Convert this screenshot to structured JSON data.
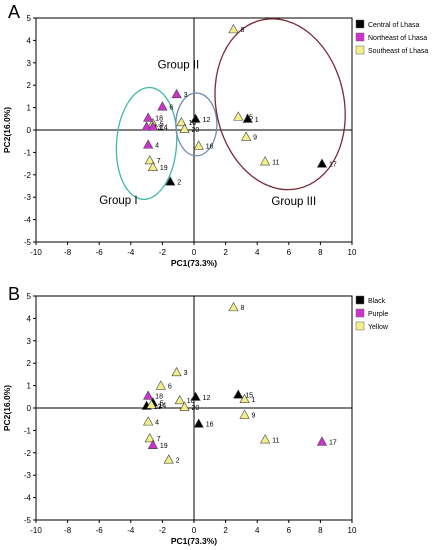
{
  "colors": {
    "black": "#000000",
    "magenta": "#cc33cc",
    "yellow": "#f3ef8a",
    "ellipse_teal": "#3fb9a8",
    "ellipse_blue": "#6f90b0",
    "ellipse_maroon": "#7a2a3a"
  },
  "chart_data": [
    {
      "panel_label": "A",
      "type": "scatter",
      "title": "",
      "xlabel": "PC1(73.3%)",
      "ylabel": "PC2(16.0%)",
      "xlim": [
        -10,
        10
      ],
      "ylim": [
        -5,
        5
      ],
      "xticks": [
        "-10",
        "-8",
        "-6",
        "-4",
        "-2",
        "0",
        "2",
        "4",
        "6",
        "8",
        "10"
      ],
      "yticks": [
        "-5",
        "-4",
        "-3",
        "-2",
        "-1",
        "0",
        "1",
        "2",
        "3",
        "4",
        "5"
      ],
      "grid": false,
      "legend_position": "top-right",
      "legend": [
        {
          "label": "Central of  Lhasa",
          "color_key": "black"
        },
        {
          "label": "Northeast of Lhasa",
          "color_key": "magenta"
        },
        {
          "label": "Southeast of Lhasa",
          "color_key": "yellow"
        }
      ],
      "points": [
        {
          "label": "1",
          "x": 3.4,
          "y": 0.5,
          "color_key": "black"
        },
        {
          "label": "2",
          "x": -1.5,
          "y": -2.3,
          "color_key": "black"
        },
        {
          "label": "3",
          "x": -1.1,
          "y": 1.6,
          "color_key": "magenta"
        },
        {
          "label": "4",
          "x": -2.9,
          "y": -0.65,
          "color_key": "magenta"
        },
        {
          "label": "5",
          "x": -2.6,
          "y": 0.3,
          "color_key": "yellow"
        },
        {
          "label": "6",
          "x": -2.0,
          "y": 1.05,
          "color_key": "magenta"
        },
        {
          "label": "7",
          "x": -2.8,
          "y": -1.35,
          "color_key": "yellow"
        },
        {
          "label": "8",
          "x": 2.5,
          "y": 4.5,
          "color_key": "yellow"
        },
        {
          "label": "9",
          "x": 3.3,
          "y": -0.3,
          "color_key": "yellow"
        },
        {
          "label": "10",
          "x": -0.8,
          "y": 0.35,
          "color_key": "yellow"
        },
        {
          "label": "11",
          "x": 4.5,
          "y": -1.4,
          "color_key": "yellow"
        },
        {
          "label": "12",
          "x": 0.1,
          "y": 0.5,
          "color_key": "black"
        },
        {
          "label": "13",
          "x": -3.0,
          "y": 0.15,
          "color_key": "magenta"
        },
        {
          "label": "14",
          "x": -2.6,
          "y": 0.15,
          "color_key": "magenta"
        },
        {
          "label": "15",
          "x": 2.8,
          "y": 0.6,
          "color_key": "yellow"
        },
        {
          "label": "16",
          "x": 0.3,
          "y": -0.7,
          "color_key": "yellow"
        },
        {
          "label": "17",
          "x": 8.1,
          "y": -1.5,
          "color_key": "black"
        },
        {
          "label": "18",
          "x": -2.9,
          "y": 0.55,
          "color_key": "magenta"
        },
        {
          "label": "19",
          "x": -2.6,
          "y": -1.65,
          "color_key": "yellow"
        },
        {
          "label": "20",
          "x": -0.6,
          "y": 0.05,
          "color_key": "yellow"
        }
      ],
      "groups": [
        {
          "label": "Group I",
          "color_key": "ellipse_teal",
          "center": [
            -3.0,
            -0.6
          ],
          "radius": [
            1.9,
            2.5
          ]
        },
        {
          "label": "Group II",
          "color_key": "ellipse_blue",
          "center": [
            0.15,
            0.25
          ],
          "radius": [
            1.3,
            1.4
          ]
        },
        {
          "label": "Group III",
          "color_key": "ellipse_maroon",
          "center": [
            5.45,
            1.15
          ],
          "radius": [
            4.05,
            3.85
          ]
        }
      ]
    },
    {
      "panel_label": "B",
      "type": "scatter",
      "title": "",
      "xlabel": "PC1(73.3%)",
      "ylabel": "PC2(16.0%)",
      "xlim": [
        -10,
        10
      ],
      "ylim": [
        -5,
        5
      ],
      "xticks": [
        "-10",
        "-8",
        "-6",
        "-4",
        "-2",
        "0",
        "2",
        "4",
        "6",
        "8",
        "10"
      ],
      "yticks": [
        "-5",
        "-4",
        "-3",
        "-2",
        "-1",
        "0",
        "1",
        "2",
        "3",
        "4",
        "5"
      ],
      "grid": false,
      "legend_position": "top-right",
      "legend": [
        {
          "label": "Black",
          "color_key": "black"
        },
        {
          "label": "Purple",
          "color_key": "magenta"
        },
        {
          "label": "Yellow",
          "color_key": "yellow"
        }
      ],
      "points": [
        {
          "label": "1",
          "x": 3.2,
          "y": 0.4,
          "color_key": "yellow"
        },
        {
          "label": "2",
          "x": -1.6,
          "y": -2.3,
          "color_key": "yellow"
        },
        {
          "label": "3",
          "x": -1.1,
          "y": 1.6,
          "color_key": "yellow"
        },
        {
          "label": "4",
          "x": -2.9,
          "y": -0.6,
          "color_key": "yellow"
        },
        {
          "label": "5",
          "x": -2.6,
          "y": 0.25,
          "color_key": "black"
        },
        {
          "label": "6",
          "x": -2.1,
          "y": 1.0,
          "color_key": "yellow"
        },
        {
          "label": "7",
          "x": -2.8,
          "y": -1.35,
          "color_key": "yellow"
        },
        {
          "label": "8",
          "x": 2.5,
          "y": 4.5,
          "color_key": "yellow"
        },
        {
          "label": "9",
          "x": 3.2,
          "y": -0.3,
          "color_key": "yellow"
        },
        {
          "label": "10",
          "x": -0.9,
          "y": 0.35,
          "color_key": "yellow"
        },
        {
          "label": "11",
          "x": 4.5,
          "y": -1.4,
          "color_key": "yellow"
        },
        {
          "label": "12",
          "x": 0.1,
          "y": 0.5,
          "color_key": "black"
        },
        {
          "label": "13",
          "x": -3.0,
          "y": 0.1,
          "color_key": "black"
        },
        {
          "label": "14",
          "x": -2.7,
          "y": 0.15,
          "color_key": "yellow"
        },
        {
          "label": "15",
          "x": 2.8,
          "y": 0.6,
          "color_key": "black"
        },
        {
          "label": "16",
          "x": 0.3,
          "y": -0.7,
          "color_key": "black"
        },
        {
          "label": "17",
          "x": 8.1,
          "y": -1.5,
          "color_key": "magenta"
        },
        {
          "label": "18",
          "x": -2.9,
          "y": 0.55,
          "color_key": "magenta"
        },
        {
          "label": "19",
          "x": -2.6,
          "y": -1.65,
          "color_key": "magenta"
        },
        {
          "label": "20",
          "x": -0.6,
          "y": 0.05,
          "color_key": "yellow"
        }
      ]
    }
  ]
}
